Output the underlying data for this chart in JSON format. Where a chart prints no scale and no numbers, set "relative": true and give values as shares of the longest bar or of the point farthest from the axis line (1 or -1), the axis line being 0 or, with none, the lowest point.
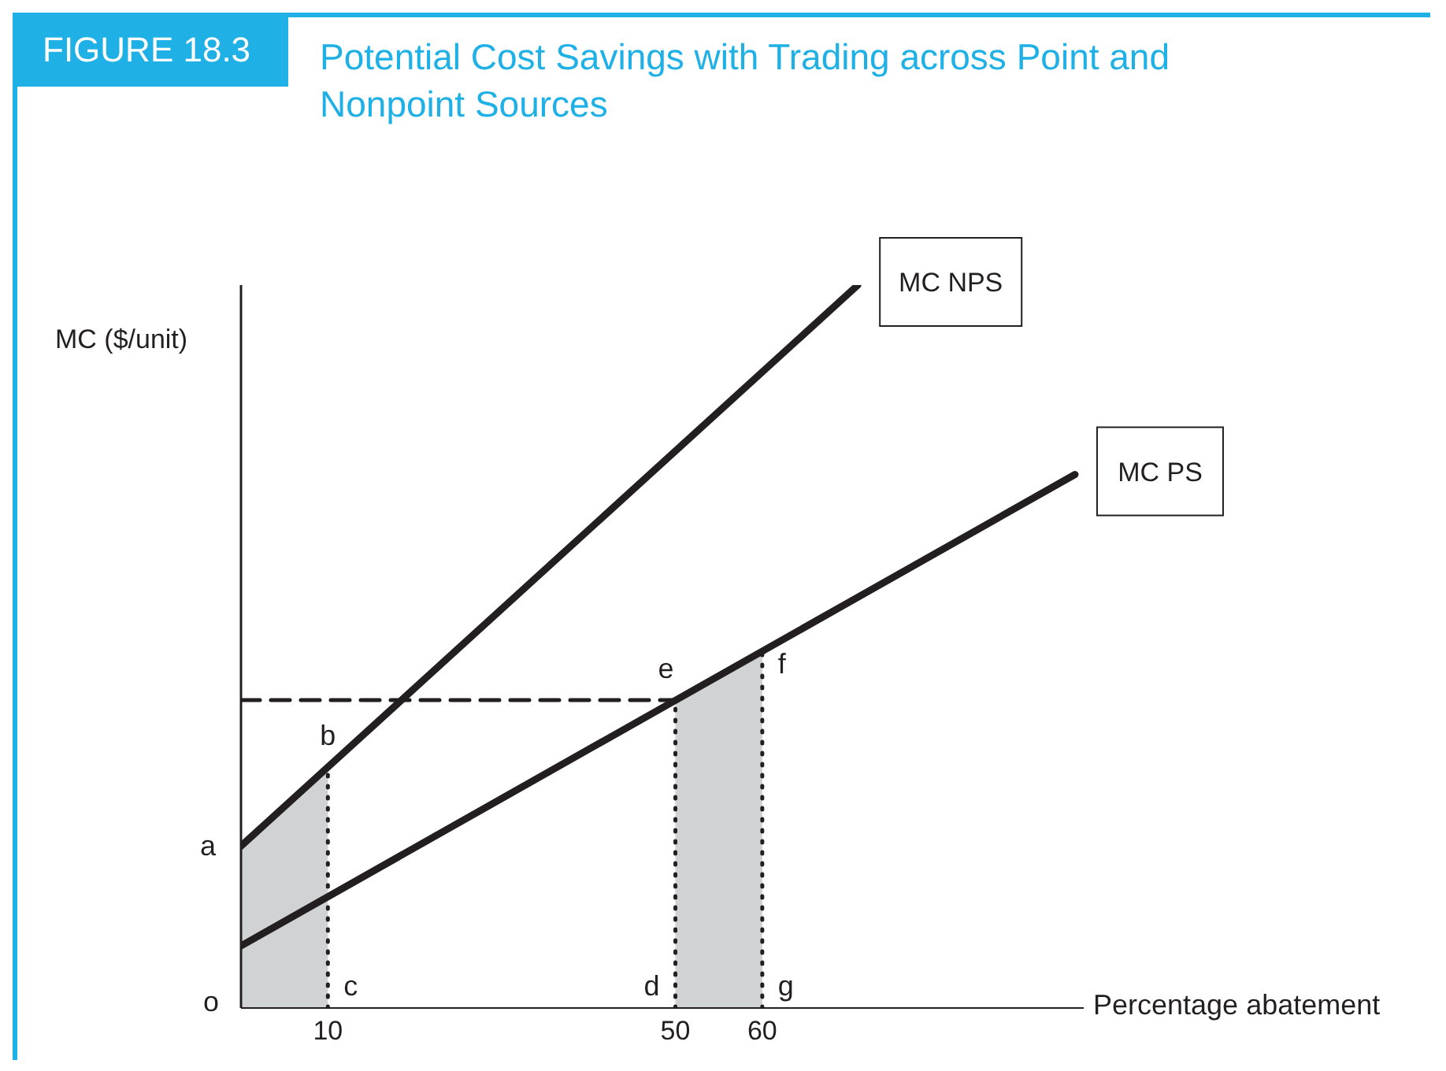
{
  "chart_data": {
    "type": "line",
    "title": "Potential Cost Savings with Trading across Point and Nonpoint Sources",
    "xlabel": "Percentage abatement",
    "ylabel": "MC ($/unit)",
    "relative": true,
    "xlim": [
      0,
      97
    ],
    "xticks": [
      10,
      50,
      60
    ],
    "grid": false,
    "legend": false,
    "marker": "none",
    "series": [
      {
        "type": "area",
        "color": "#d1d2d4",
        "x": [
          0,
          10
        ],
        "values": [
          0.224,
          0.333
        ]
      },
      {
        "type": "area",
        "color": "#d1d2d4",
        "x": [
          50,
          60
        ],
        "values": [
          0.426,
          0.494
        ]
      },
      {
        "name": "MC NPS",
        "color": "#231f20",
        "x": [
          0,
          71
        ],
        "values": [
          0.224,
          1
        ],
        "line_style": "solid"
      },
      {
        "name": "MC PS",
        "color": "#231f20",
        "x": [
          0,
          96
        ],
        "values": [
          0.086,
          0.738
        ],
        "line_style": "solid"
      },
      {
        "color": "#231f20",
        "x": [
          0,
          50
        ],
        "values": [
          0.426,
          0.426
        ],
        "line_style": "dashed"
      },
      {
        "color": "#231f20",
        "x": [
          10,
          10
        ],
        "values": [
          0,
          0.333
        ],
        "line_style": "dotted"
      },
      {
        "color": "#231f20",
        "x": [
          50,
          50
        ],
        "values": [
          0,
          0.426
        ],
        "line_style": "dotted"
      },
      {
        "color": "#231f20",
        "x": [
          60,
          60
        ],
        "values": [
          0,
          0.494
        ],
        "line_style": "dotted"
      }
    ],
    "annotations": [
      "FIGURE 18.3",
      "o",
      {
        "text": "a",
        "x": 0,
        "y": 0.224
      },
      {
        "text": "b",
        "x": 10,
        "y": 0.333
      },
      {
        "text": "c",
        "x": 10,
        "y": 0
      },
      {
        "text": "d",
        "x": 50,
        "y": 0
      },
      {
        "text": "e",
        "x": 50,
        "y": 0.426
      },
      {
        "text": "f",
        "x": 60,
        "y": 0.494
      },
      {
        "text": "g",
        "x": 60,
        "y": 0
      }
    ]
  }
}
